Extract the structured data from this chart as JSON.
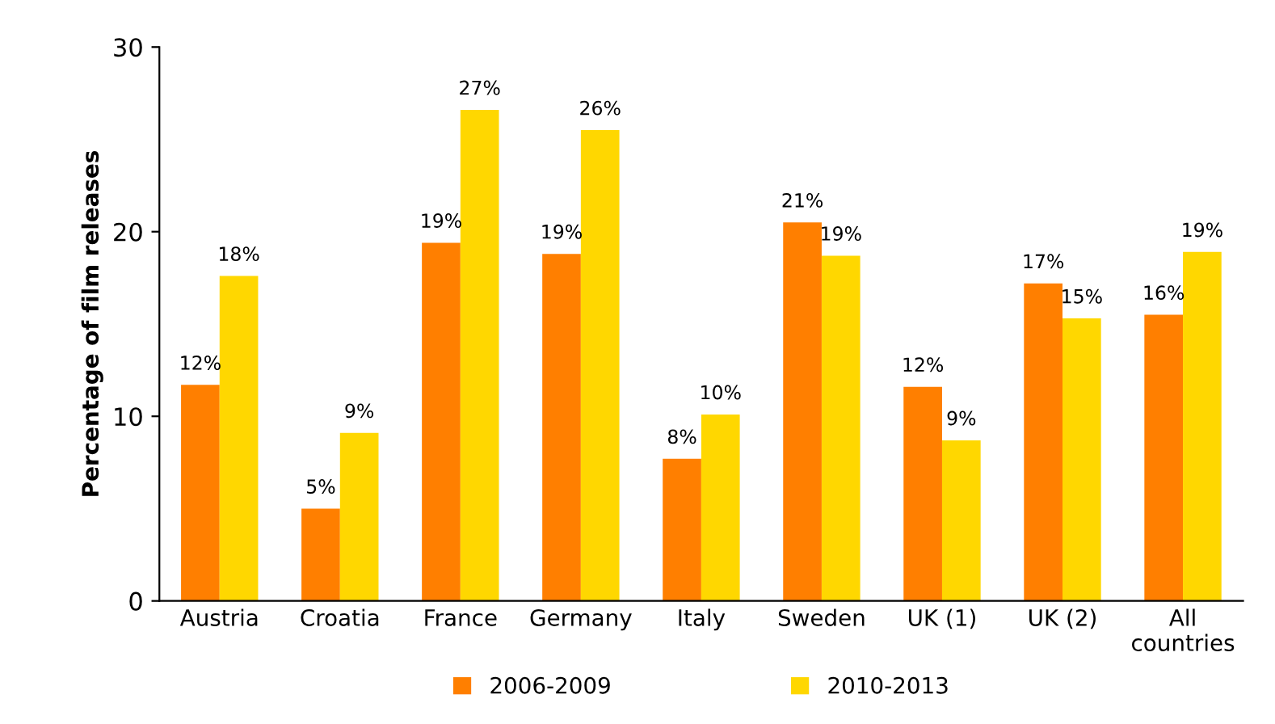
{
  "chart_data": {
    "type": "bar",
    "ylabel": "Percentage of film releases",
    "categories": [
      "Austria",
      "Croatia",
      "France",
      "Germany",
      "Italy",
      "Sweden",
      "UK (1)",
      "UK (2)",
      "All\ncountries"
    ],
    "series": [
      {
        "name": "2006-2009",
        "color": "#ff7f00",
        "values": [
          11.7,
          5.0,
          19.4,
          18.8,
          7.7,
          20.5,
          11.6,
          17.2,
          15.5
        ],
        "value_labels": [
          "12%",
          "5%",
          "19%",
          "19%",
          "8%",
          "21%",
          "12%",
          "17%",
          "16%"
        ]
      },
      {
        "name": "2010-2013",
        "color": "#ffd700",
        "values": [
          17.6,
          9.1,
          26.6,
          25.5,
          10.1,
          18.7,
          8.7,
          15.3,
          18.9
        ],
        "value_labels": [
          "18%",
          "9%",
          "27%",
          "26%",
          "10%",
          "19%",
          "9%",
          "15%",
          "19%"
        ]
      }
    ],
    "ylim": [
      0,
      30
    ],
    "yticks": [
      0,
      10,
      20,
      30
    ],
    "grid": false,
    "legend": "bottom"
  }
}
